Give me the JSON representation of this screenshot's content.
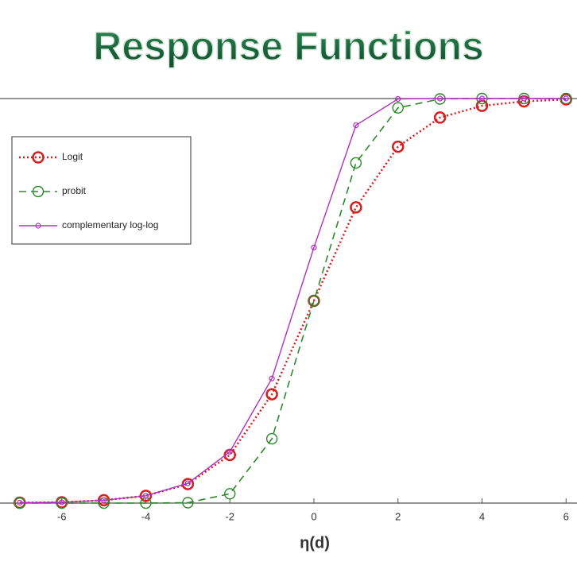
{
  "chart_data": {
    "type": "line",
    "title": "Response Functions",
    "xlabel": "η(d)",
    "x": [
      -7,
      -6,
      -5,
      -4,
      -3,
      -2,
      -1,
      0,
      1,
      2,
      3,
      4,
      5,
      6
    ],
    "series": [
      {
        "name": "Logit",
        "color": "#d42020",
        "values": [
          0.001,
          0.002,
          0.007,
          0.018,
          0.047,
          0.119,
          0.269,
          0.5,
          0.731,
          0.881,
          0.953,
          0.982,
          0.993,
          0.998
        ]
      },
      {
        "name": "probit",
        "color": "#2a8a2a",
        "values": [
          0,
          0,
          0,
          0,
          0.001,
          0.023,
          0.159,
          0.5,
          0.841,
          0.977,
          0.999,
          1,
          1,
          1
        ]
      },
      {
        "name": "complementary log-log",
        "color": "#b030c0",
        "values": [
          0.001,
          0.002,
          0.007,
          0.018,
          0.049,
          0.127,
          0.308,
          0.632,
          0.934,
          0.999,
          1,
          1,
          1,
          1
        ]
      }
    ],
    "xlim": [
      -7.47,
      6.26
    ],
    "ylim": [
      0,
      1
    ],
    "xticks": [
      -6,
      -4,
      -2,
      0,
      2,
      4,
      6
    ]
  }
}
